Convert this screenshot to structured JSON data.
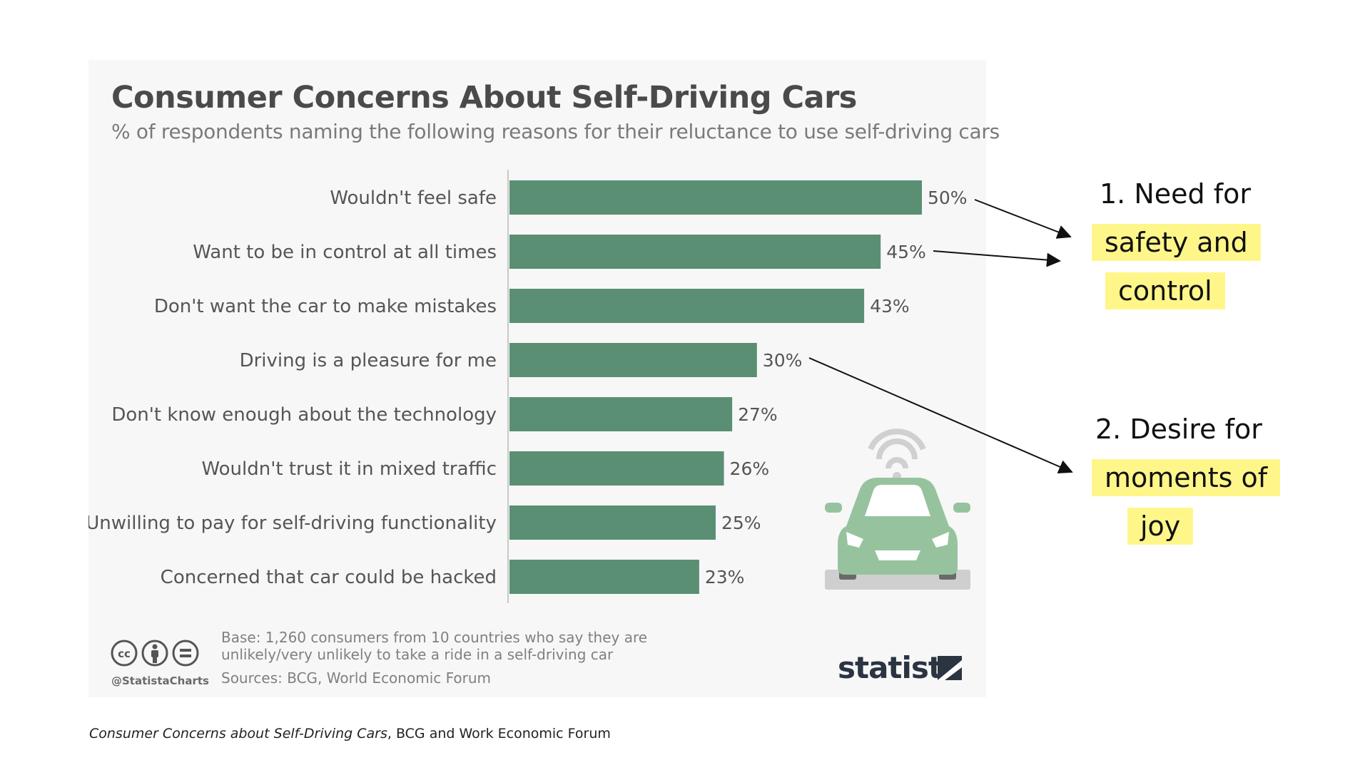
{
  "chart_data": {
    "type": "bar",
    "orientation": "horizontal",
    "title": "Consumer Concerns About Self-Driving Cars",
    "subtitle": "% of respondents naming the following reasons for their reluctance to use self-driving cars",
    "categories": [
      "Wouldn't feel safe",
      "Want to be in control at all times",
      "Don't want the car to make mistakes",
      "Driving is a pleasure for me",
      "Don't know enough about the technology",
      "Wouldn't trust it in mixed traffic",
      "Unwilling to pay for self-driving functionality",
      "Concerned that car could be hacked"
    ],
    "values": [
      50,
      45,
      43,
      30,
      27,
      26,
      25,
      23
    ],
    "value_labels": [
      "50%",
      "45%",
      "43%",
      "30%",
      "27%",
      "26%",
      "25%",
      "23%"
    ],
    "xlim": [
      0,
      50
    ],
    "bar_color": "#5a8f73",
    "grid": false
  },
  "footer": {
    "handle": "@StatistaCharts",
    "note_line1": "Base: 1,260 consumers from 10 countries who say they are",
    "note_line2": "unlikely/very unlikely to take a ride in a self-driving car",
    "sources": "Sources: BCG, World Economic Forum",
    "brand": "statista"
  },
  "caption": {
    "italic": "Consumer Concerns about Self-Driving Cars",
    "rest": ", BCG and Work Economic Forum"
  },
  "annotations": {
    "first": {
      "line1": "1. Need for",
      "line2": "safety and",
      "line3": "control"
    },
    "second": {
      "line1": "2. Desire for",
      "line2": "moments of",
      "line3": "joy"
    }
  },
  "colors": {
    "bar": "#5a8f73",
    "car": "#96c39e",
    "highlight": "#fff68a",
    "card_bg": "#f7f7f7"
  }
}
